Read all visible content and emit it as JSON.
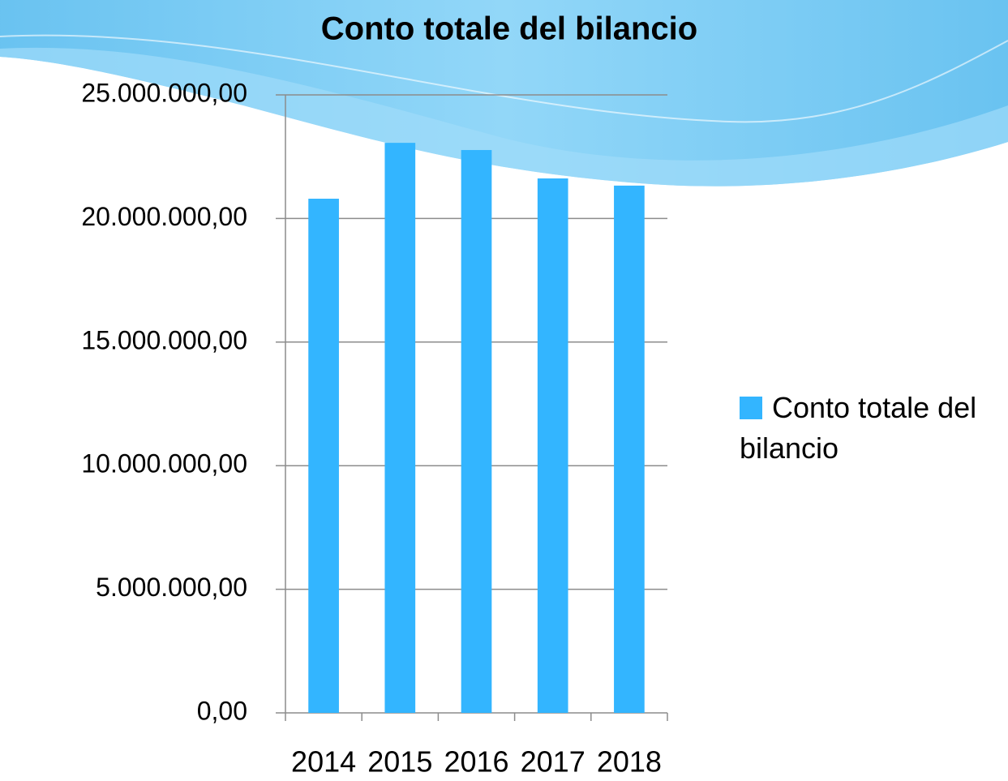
{
  "chart_data": {
    "type": "bar",
    "title": "Conto totale del bilancio",
    "categories": [
      "2014",
      "2015",
      "2016",
      "2017",
      "2018"
    ],
    "series": [
      {
        "name": "Conto totale del bilancio",
        "color": "#33b5ff",
        "values": [
          20800000,
          23060000,
          22770000,
          21620000,
          21330000
        ]
      }
    ],
    "ylim": [
      0,
      25000000
    ],
    "yticks": [
      {
        "value": 0,
        "label": "0,00"
      },
      {
        "value": 5000000,
        "label": "5.000.000,00"
      },
      {
        "value": 10000000,
        "label": "10.000.000,00"
      },
      {
        "value": 15000000,
        "label": "15.000.000,00"
      },
      {
        "value": 20000000,
        "label": "20.000.000,00"
      },
      {
        "value": 25000000,
        "label": "25.000.000,00"
      }
    ],
    "grid": true,
    "legend": "right"
  }
}
